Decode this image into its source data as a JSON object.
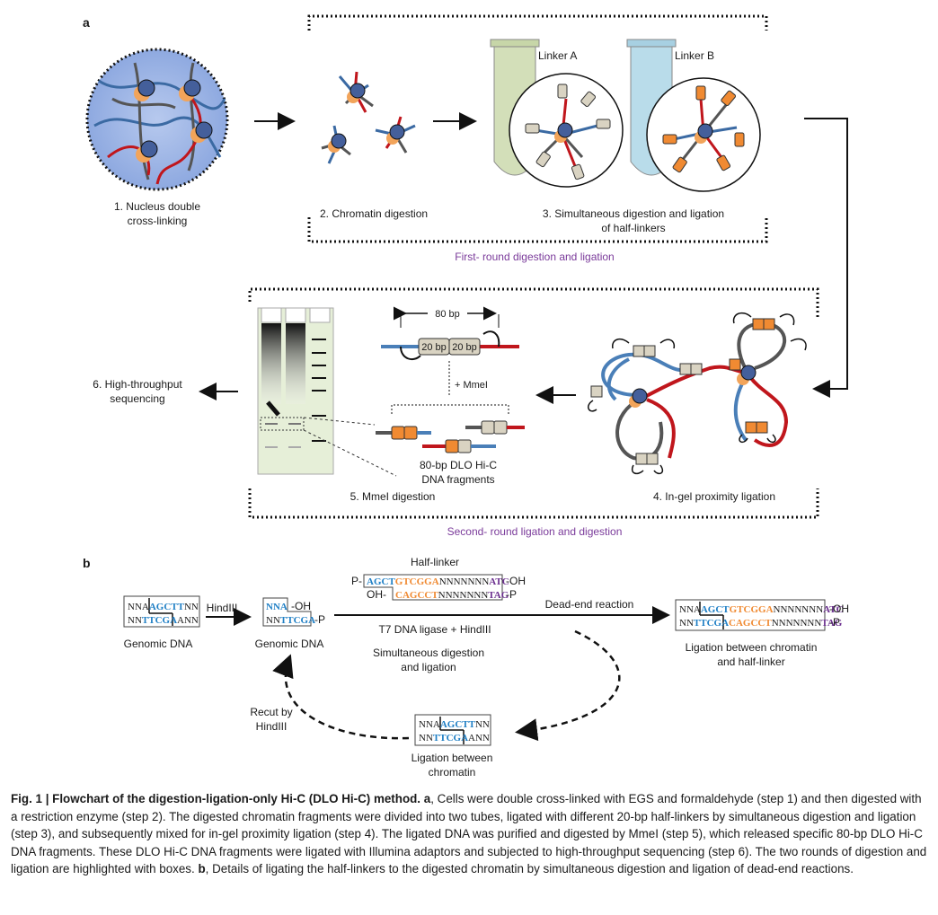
{
  "panel_a": {
    "label": "a",
    "step1_line1": "1. Nucleus double",
    "step1_line2": "cross-linking",
    "step2": "2. Chromatin digestion",
    "step3_line1": "3. Simultaneous digestion and ligation",
    "step3_line2": "of half-linkers",
    "linker_a": "Linker A",
    "linker_b": "Linker B",
    "first_round": "First- round digestion and ligation",
    "bp80": "80 bp",
    "bp20": "20 bp",
    "mmei": "+ MmeI",
    "fragments_line1": "80-bp DLO Hi-C",
    "fragments_line2": "DNA fragments",
    "step5": "5. MmeI digestion",
    "step4": "4. In-gel proximity ligation",
    "step6_line1": "6. High-throughput",
    "step6_line2": "sequencing",
    "second_round": "Second- round ligation and digestion"
  },
  "panel_b": {
    "label": "b",
    "half_linker": "Half-linker",
    "top_prefix": "P-",
    "top_blue": "AGCT",
    "top_orange": "GTCGGA",
    "top_n": "NNNNNNN",
    "top_purple": "ATC",
    "top_suffix": "-OH",
    "bot_prefix": "OH-",
    "bot_orange": "CAGCCT",
    "bot_n": "NNNNNNN",
    "bot_purple": "TAG",
    "bot_suffix": "-P",
    "hindiii": "HindIII",
    "genomic_dna": "Genomic DNA",
    "g1_top_a": "NNA",
    "g1_top_b": "AGCTT",
    "g1_top_c": "NN",
    "g1_bot_a": "NN",
    "g1_bot_b": "TTCGA",
    "g1_bot_c": "ANN",
    "g2_top": "NNA",
    "g2_top_suffix": "-OH",
    "g2_bot_a": "NN",
    "g2_bot_b": "TTCGA",
    "g2_bot_suffix": "-P",
    "dead_end": "Dead-end reaction",
    "t7": "T7 DNA ligase + HindIII",
    "simul_line1": "Simultaneous digestion",
    "simul_line2": "and ligation",
    "res_top_a": "NNA",
    "res_top_b": "AGCT",
    "res_top_c": "GTCGGA",
    "res_top_d": "NNNNNNN",
    "res_top_e": "ATC",
    "res_top_suffix": "-OH",
    "res_bot_a": "NN",
    "res_bot_b": "TTCGA",
    "res_bot_c": "CAGCCT",
    "res_bot_d": "NNNNNNN",
    "res_bot_e": "TAG",
    "res_bot_suffix": "-P",
    "lig_hl_line1": "Ligation between chromatin",
    "lig_hl_line2": "and half-linker",
    "recut_line1": "Recut by",
    "recut_line2": "HindIII",
    "lig_ch_line1": "Ligation between",
    "lig_ch_line2": "chromatin"
  },
  "caption": {
    "title": "Fig. 1 | Flowchart of the digestion-ligation-only Hi-C (DLO Hi-C) method.",
    "a_label": "a",
    "text_a": ", Cells were double cross-linked with EGS and formaldehyde (step 1) and then digested with a restriction enzyme (step 2). The digested chromatin fragments were divided into two tubes, ligated with different 20-bp half-linkers by simultaneous digestion and ligation (step 3), and subsequently mixed for in-gel proximity ligation (step 4). The ligated DNA was purified and digested by MmeI (step 5), which released specific 80-bp DLO Hi-C DNA fragments. These DLO Hi-C DNA fragments were ligated with Illumina adaptors and subjected to high-throughput sequencing (step 6). The two rounds of digestion and ligation are highlighted with boxes.",
    "b_label": "b",
    "text_b": ", Details of ligating the half-linkers to the digested chromatin by simultaneous digestion and ligation of dead-end reactions."
  },
  "colors": {
    "blue_dna": "#4a7fb8",
    "red_dna": "#c0161c",
    "gray_dna": "#6b6b6b",
    "orange_linker": "#f08a32",
    "beige_linker": "#d9d3c2",
    "purple_text": "#7a3a9a",
    "seq_blue": "#1f7fc5",
    "seq_orange": "#f08a32",
    "seq_purple": "#6b2f8f",
    "tube_green": "#d3dfb9",
    "tube_blue": "#b9dcea",
    "gel": "#e6efd8"
  }
}
